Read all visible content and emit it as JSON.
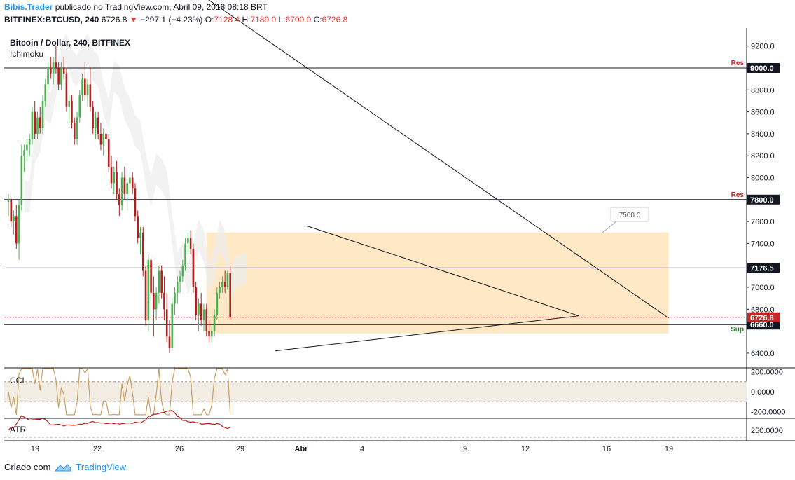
{
  "header": {
    "author": "Bibis.Trader",
    "published": "publicado no TradingView.com, Abril 09, 2018 08:18 BRT",
    "symbol": "BITFINEX:BTCUSD, 240",
    "last": "6726.8",
    "change": "−297.1 (−4.23%)",
    "o_label": "O:",
    "o": "7128.4",
    "h_label": "H:",
    "h": "7189.0",
    "l_label": "L:",
    "l": "6700.0",
    "c_label": "C:",
    "c": "6726.8"
  },
  "panes": {
    "main_title": "Bitcoin / Dollar, 240, BITFINEX",
    "main_indicator": "Ichimoku",
    "cci": "CCI",
    "atr": "ATR"
  },
  "footer": {
    "left": "Criado com",
    "brand": "TradingView"
  },
  "colors": {
    "up": "#4caf50",
    "down": "#b71c1c",
    "zone": "#ffe0b2",
    "cloud": "#ececec",
    "cci": "#c8a26a",
    "atr": "#b71c1c",
    "accent": "#2196f3"
  },
  "chart_data": {
    "type": "candlestick",
    "symbol": "BITFINEX:BTCUSD",
    "timeframe": "240",
    "x_ticks": [
      "19",
      "22",
      "26",
      "29",
      "Abr",
      "4",
      "9",
      "12",
      "16",
      "19"
    ],
    "y_ticks": [
      "9200.0",
      "8800.0",
      "8600.0",
      "8400.0",
      "8200.0",
      "8000.0",
      "7600.0",
      "7400.0",
      "7000.0",
      "6800.0",
      "6400.0"
    ],
    "ylim": [
      6300,
      9400
    ],
    "levels": [
      {
        "label": "Res",
        "value": "9000.0",
        "kind": "res"
      },
      {
        "label": "Res",
        "value": "7800.0",
        "kind": "res"
      },
      {
        "label": "",
        "value": "7176.5",
        "kind": "line"
      },
      {
        "label": "Sup",
        "value": "6660.0",
        "kind": "sup"
      }
    ],
    "current_price": "6726.8",
    "annotation": "7500.0",
    "zone": {
      "from_index": 75,
      "to_index": 250,
      "low": 6580,
      "high": 7500
    },
    "trendlines": [
      {
        "points": [
          [
            72,
            9685
          ],
          [
            250,
            6720
          ]
        ]
      },
      {
        "points": [
          [
            113,
            7560
          ],
          [
            216,
            6740
          ]
        ]
      },
      {
        "points": [
          [
            101,
            6420
          ],
          [
            216,
            6740
          ]
        ]
      }
    ],
    "candles_ohlc": [
      [
        7780,
        7850,
        7650,
        7800
      ],
      [
        7800,
        7820,
        7550,
        7600
      ],
      [
        7600,
        7700,
        7480,
        7650
      ],
      [
        7650,
        7750,
        7350,
        7400
      ],
      [
        7400,
        7800,
        7250,
        7750
      ],
      [
        7750,
        8300,
        7700,
        8200
      ],
      [
        8200,
        8300,
        8050,
        8250
      ],
      [
        8250,
        8350,
        8150,
        8300
      ],
      [
        8300,
        8400,
        8200,
        8350
      ],
      [
        8350,
        8650,
        8300,
        8600
      ],
      [
        8600,
        8700,
        8350,
        8400
      ],
      [
        8400,
        8600,
        8350,
        8550
      ],
      [
        8550,
        8650,
        8400,
        8450
      ],
      [
        8450,
        8750,
        8400,
        8700
      ],
      [
        8700,
        8900,
        8650,
        8850
      ],
      [
        8850,
        9050,
        8800,
        9000
      ],
      [
        9000,
        9100,
        8900,
        8950
      ],
      [
        8950,
        9100,
        8850,
        9050
      ],
      [
        9050,
        9200,
        8950,
        9000
      ],
      [
        9000,
        9050,
        8800,
        8850
      ],
      [
        8850,
        9050,
        8800,
        9000
      ],
      [
        9000,
        9100,
        8900,
        8950
      ],
      [
        8950,
        9000,
        8600,
        8650
      ],
      [
        8650,
        8750,
        8500,
        8700
      ],
      [
        8700,
        8750,
        8450,
        8500
      ],
      [
        8500,
        8550,
        8300,
        8350
      ],
      [
        8350,
        8600,
        8300,
        8550
      ],
      [
        8550,
        8800,
        8500,
        8750
      ],
      [
        8750,
        8950,
        8700,
        8900
      ],
      [
        8900,
        9050,
        8700,
        8750
      ],
      [
        8750,
        8900,
        8650,
        8850
      ],
      [
        8850,
        9000,
        8600,
        8650
      ],
      [
        8650,
        8700,
        8400,
        8450
      ],
      [
        8450,
        8600,
        8350,
        8550
      ],
      [
        8550,
        8600,
        8350,
        8400
      ],
      [
        8400,
        8500,
        8250,
        8300
      ],
      [
        8300,
        8450,
        8200,
        8400
      ],
      [
        8400,
        8500,
        8300,
        8350
      ],
      [
        8350,
        8400,
        8050,
        8100
      ],
      [
        8100,
        8200,
        7900,
        7950
      ],
      [
        7950,
        8100,
        7850,
        8050
      ],
      [
        8050,
        8150,
        7800,
        7850
      ],
      [
        7850,
        7900,
        7650,
        7750
      ],
      [
        7750,
        8050,
        7700,
        8000
      ],
      [
        8000,
        8100,
        7800,
        7850
      ],
      [
        7850,
        8000,
        7700,
        7950
      ],
      [
        7950,
        8050,
        7800,
        8000
      ],
      [
        8000,
        8050,
        7850,
        7900
      ],
      [
        7900,
        7950,
        7600,
        7650
      ],
      [
        7650,
        7700,
        7400,
        7450
      ],
      [
        7450,
        7550,
        7300,
        7500
      ],
      [
        7500,
        7550,
        7100,
        7150
      ],
      [
        7150,
        7200,
        6650,
        6700
      ],
      [
        6700,
        7300,
        6600,
        7250
      ],
      [
        7250,
        7300,
        6900,
        6950
      ],
      [
        6950,
        7100,
        6550,
        6800
      ],
      [
        6800,
        7000,
        6700,
        6950
      ],
      [
        6950,
        7200,
        6850,
        7150
      ],
      [
        7150,
        7200,
        6900,
        6950
      ],
      [
        6950,
        7100,
        6700,
        6800
      ],
      [
        6800,
        6950,
        6500,
        6550
      ],
      [
        6550,
        6700,
        6400,
        6450
      ],
      [
        6450,
        6900,
        6420,
        6850
      ],
      [
        6850,
        7000,
        6750,
        6950
      ],
      [
        6950,
        7100,
        6850,
        7050
      ],
      [
        7050,
        7150,
        6950,
        7100
      ],
      [
        7100,
        7250,
        7050,
        7200
      ],
      [
        7200,
        7450,
        7150,
        7400
      ],
      [
        7400,
        7500,
        7300,
        7450
      ],
      [
        7450,
        7520,
        7300,
        7350
      ],
      [
        7350,
        7400,
        6950,
        7000
      ],
      [
        7000,
        7050,
        6700,
        6750
      ],
      [
        6750,
        6900,
        6600,
        6850
      ],
      [
        6850,
        6950,
        6650,
        6700
      ],
      [
        6700,
        6850,
        6600,
        6800
      ],
      [
        6800,
        6850,
        6550,
        6600
      ],
      [
        6600,
        6700,
        6500,
        6550
      ],
      [
        6550,
        6650,
        6500,
        6600
      ],
      [
        6600,
        6800,
        6550,
        6750
      ],
      [
        6750,
        7000,
        6700,
        6950
      ],
      [
        6950,
        7050,
        6900,
        7000
      ],
      [
        7000,
        7100,
        6950,
        7050
      ],
      [
        7050,
        7150,
        6950,
        7000
      ],
      [
        7000,
        7150,
        6980,
        7128
      ],
      [
        7128,
        7189,
        6700,
        6727
      ]
    ],
    "cci": {
      "ylim": [
        -250,
        250
      ],
      "ticks": [
        "200.0000",
        "0.0000",
        "-200.0000"
      ],
      "levels": [
        100,
        -100
      ]
    },
    "atr": {
      "ticks": [
        "250.0000"
      ]
    }
  }
}
